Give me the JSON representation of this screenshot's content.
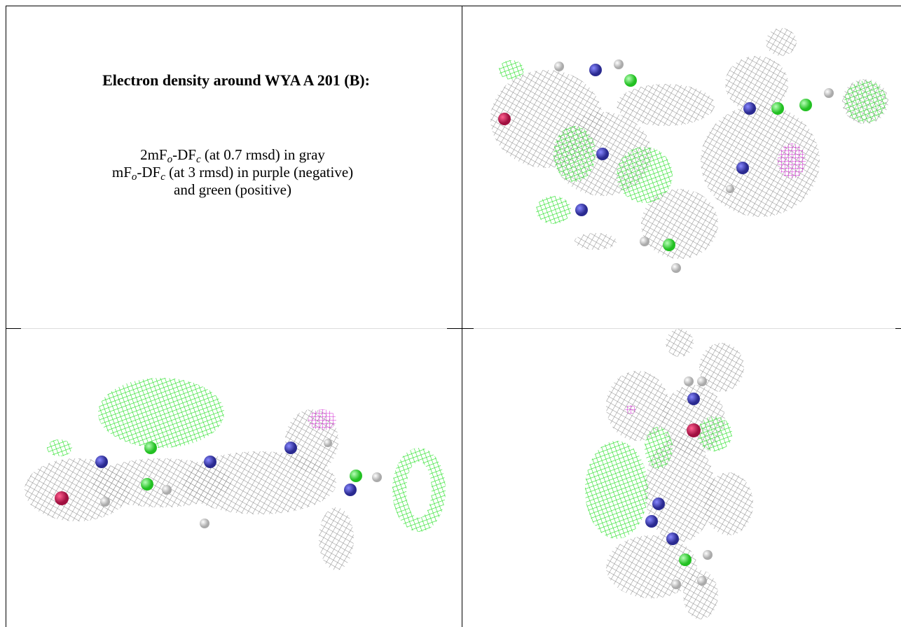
{
  "header": {
    "title": "Electron density around WYA A 201 (B):"
  },
  "legend": {
    "lines": [
      [
        {
          "text": "2mF"
        },
        {
          "text": "o",
          "sub": true
        },
        {
          "text": "-DF"
        },
        {
          "text": "c",
          "sub": true
        },
        {
          "text": " (at 0.7 rmsd) in gray"
        }
      ],
      [
        {
          "text": "mF"
        },
        {
          "text": "o",
          "sub": true
        },
        {
          "text": "-DF"
        },
        {
          "text": "c",
          "sub": true
        },
        {
          "text": " (at 3 rmsd) in purple (negative)"
        }
      ],
      [
        {
          "text": "and green (positive)"
        }
      ]
    ]
  }
}
